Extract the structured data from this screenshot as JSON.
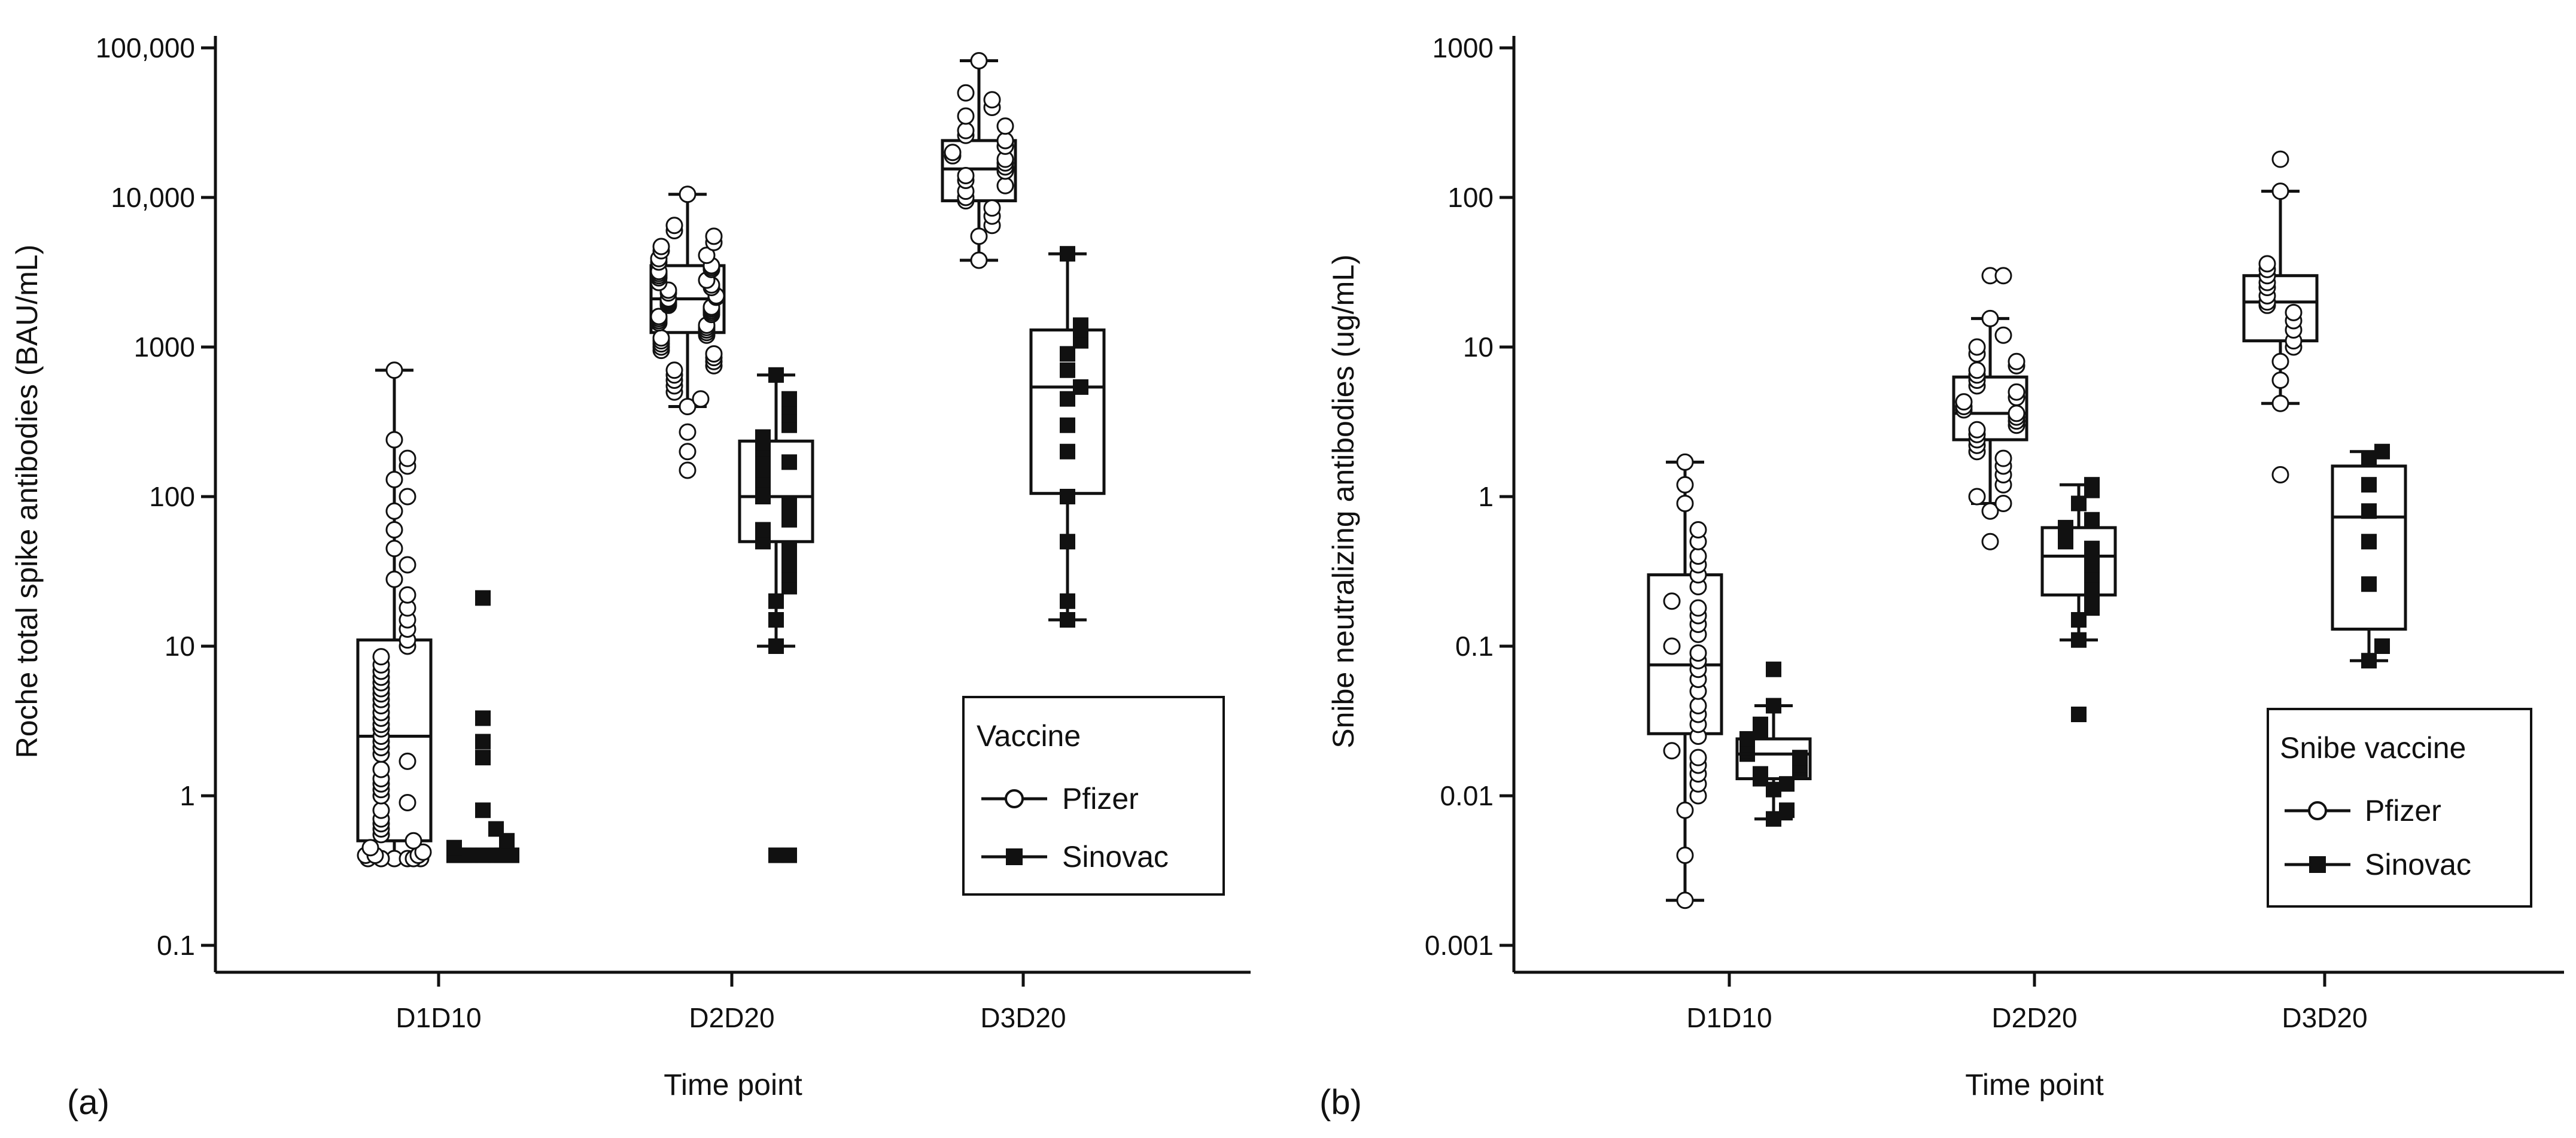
{
  "chart_data": [
    {
      "type": "boxplot",
      "panel_label": "(a)",
      "xlabel": "Time point",
      "ylabel": "Roche total spike antibodies (BAU/mL)",
      "yscale": "log",
      "ylim": [
        0.1,
        100000
      ],
      "yticks": [
        0.1,
        1,
        10,
        100,
        1000,
        10000,
        100000
      ],
      "ytick_labels": [
        "0.1",
        "1",
        "10",
        "100",
        "1000",
        "10,000",
        "100,000"
      ],
      "categories": [
        "D1D10",
        "D2D20",
        "D3D20"
      ],
      "legend": {
        "title": "Vaccine",
        "entries": [
          "Pfizer",
          "Sinovac"
        ],
        "position": "bottom-right"
      },
      "series": [
        {
          "name": "Pfizer",
          "marker": "open-circle",
          "boxes": [
            {
              "category": "D1D10",
              "whisker_low": 0.4,
              "q1": 0.5,
              "median": 2.5,
              "q3": 11,
              "whisker_high": 700,
              "points": [
                0.38,
                0.38,
                0.38,
                0.38,
                0.38,
                0.38,
                0.4,
                0.4,
                0.4,
                0.42,
                0.45,
                0.5,
                0.55,
                0.6,
                0.65,
                0.7,
                0.8,
                0.9,
                1.0,
                1.1,
                1.2,
                1.3,
                1.5,
                1.7,
                1.9,
                2.1,
                2.3,
                2.5,
                2.8,
                3.0,
                3.3,
                3.6,
                4.0,
                4.4,
                4.8,
                5.2,
                5.7,
                6.2,
                6.8,
                7.5,
                8.5,
                10,
                11,
                13,
                15,
                18,
                22,
                28,
                35,
                45,
                60,
                80,
                100,
                130,
                160,
                180,
                240,
                700
              ]
            },
            {
              "category": "D2D20",
              "whisker_low": 400,
              "q1": 1250,
              "median": 2100,
              "q3": 3500,
              "whisker_high": 10500,
              "points": [
                150,
                200,
                270,
                400,
                450,
                500,
                550,
                600,
                650,
                700,
                750,
                800,
                850,
                900,
                950,
                1000,
                1050,
                1100,
                1150,
                1200,
                1250,
                1300,
                1350,
                1400,
                1450,
                1500,
                1550,
                1600,
                1650,
                1700,
                1750,
                1800,
                1850,
                1900,
                1950,
                2000,
                2050,
                2100,
                2150,
                2200,
                2300,
                2400,
                2500,
                2600,
                2700,
                2800,
                2900,
                3000,
                3100,
                3200,
                3300,
                3400,
                3500,
                3700,
                3900,
                4100,
                4400,
                4700,
                5000,
                5500,
                6000,
                6500,
                10500
              ]
            },
            {
              "category": "D3D20",
              "whisker_low": 3800,
              "q1": 9500,
              "median": 15500,
              "q3": 24000,
              "whisker_high": 82000,
              "points": [
                3800,
                5500,
                6500,
                7500,
                8500,
                9500,
                10000,
                11000,
                12000,
                13000,
                14000,
                15000,
                16000,
                17000,
                18000,
                19000,
                20000,
                22000,
                24000,
                26000,
                28000,
                30000,
                35000,
                40000,
                45000,
                50000,
                82000
              ]
            }
          ]
        },
        {
          "name": "Sinovac",
          "marker": "filled-square",
          "boxes": [
            {
              "category": "D1D10",
              "whisker_low": null,
              "q1": null,
              "median": null,
              "q3": null,
              "whisker_high": null,
              "points": [
                0.4,
                0.4,
                0.4,
                0.4,
                0.4,
                0.4,
                0.4,
                0.4,
                0.4,
                0.4,
                0.4,
                0.4,
                0.45,
                0.5,
                0.6,
                0.8,
                1.8,
                2.3,
                3.3,
                21
              ]
            },
            {
              "category": "D2D20",
              "whisker_low": 10,
              "q1": 50,
              "median": 100,
              "q3": 235,
              "whisker_high": 650,
              "points": [
                0.4,
                0.4,
                10,
                15,
                20,
                25,
                30,
                35,
                40,
                45,
                50,
                55,
                60,
                70,
                80,
                90,
                100,
                110,
                120,
                130,
                150,
                170,
                190,
                210,
                230,
                250,
                300,
                350,
                400,
                450,
                650
              ]
            },
            {
              "category": "D3D20",
              "whisker_low": 15,
              "q1": 105,
              "median": 540,
              "q3": 1300,
              "whisker_high": 4200,
              "points": [
                15,
                20,
                50,
                100,
                200,
                300,
                450,
                540,
                700,
                900,
                1100,
                1300,
                1400,
                4200
              ]
            }
          ]
        }
      ]
    },
    {
      "type": "boxplot",
      "panel_label": "(b)",
      "xlabel": "Time point",
      "ylabel": "Snibe neutralizing antibodies (ug/mL)",
      "yscale": "log",
      "ylim": [
        0.001,
        1000
      ],
      "yticks": [
        0.001,
        0.01,
        0.1,
        1,
        10,
        100,
        1000
      ],
      "ytick_labels": [
        "0.001",
        "0.01",
        "0.1",
        "1",
        "10",
        "100",
        "1000"
      ],
      "categories": [
        "D1D10",
        "D2D20",
        "D3D20"
      ],
      "legend": {
        "title": "Snibe vaccine",
        "entries": [
          "Pfizer",
          "Sinovac"
        ],
        "position": "bottom-right"
      },
      "series": [
        {
          "name": "Pfizer",
          "marker": "open-circle",
          "boxes": [
            {
              "category": "D1D10",
              "whisker_low": 0.002,
              "q1": 0.026,
              "median": 0.075,
              "q3": 0.3,
              "whisker_high": 1.7,
              "points": [
                0.002,
                0.004,
                0.008,
                0.01,
                0.012,
                0.014,
                0.016,
                0.018,
                0.02,
                0.025,
                0.03,
                0.035,
                0.04,
                0.05,
                0.06,
                0.07,
                0.08,
                0.09,
                0.1,
                0.12,
                0.14,
                0.16,
                0.18,
                0.2,
                0.25,
                0.3,
                0.35,
                0.4,
                0.5,
                0.6,
                0.9,
                1.2,
                1.7
              ]
            },
            {
              "category": "D2D20",
              "whisker_low": 0.9,
              "q1": 2.4,
              "median": 3.6,
              "q3": 6.3,
              "whisker_high": 15.5,
              "points": [
                0.5,
                0.8,
                0.9,
                1.0,
                1.2,
                1.4,
                1.6,
                1.8,
                2.0,
                2.2,
                2.4,
                2.6,
                2.8,
                3.0,
                3.2,
                3.4,
                3.6,
                3.8,
                4.0,
                4.3,
                4.6,
                5.0,
                5.5,
                6.0,
                6.5,
                7.0,
                7.5,
                8.0,
                9.0,
                10,
                12,
                15.5,
                30,
                30
              ]
            },
            {
              "category": "D3D20",
              "whisker_low": 4.2,
              "q1": 11,
              "median": 20,
              "q3": 30,
              "whisker_high": 110,
              "points": [
                1.4,
                4.2,
                6,
                8,
                10,
                11,
                13,
                15,
                17,
                19,
                20,
                22,
                25,
                27,
                30,
                33,
                36,
                110,
                180
              ]
            }
          ]
        },
        {
          "name": "Sinovac",
          "marker": "filled-square",
          "boxes": [
            {
              "category": "D1D10",
              "whisker_low": 0.007,
              "q1": 0.013,
              "median": 0.019,
              "q3": 0.024,
              "whisker_high": 0.04,
              "points": [
                0.007,
                0.008,
                0.011,
                0.012,
                0.013,
                0.014,
                0.015,
                0.016,
                0.017,
                0.018,
                0.019,
                0.02,
                0.021,
                0.022,
                0.024,
                0.027,
                0.03,
                0.04,
                0.07
              ]
            },
            {
              "category": "D2D20",
              "whisker_low": 0.11,
              "q1": 0.22,
              "median": 0.4,
              "q3": 0.62,
              "whisker_high": 1.2,
              "points": [
                0.035,
                0.11,
                0.15,
                0.18,
                0.22,
                0.26,
                0.3,
                0.35,
                0.4,
                0.45,
                0.5,
                0.55,
                0.62,
                0.7,
                0.9,
                1.1,
                1.2
              ]
            },
            {
              "category": "D3D20",
              "whisker_low": 0.08,
              "q1": 0.13,
              "median": 0.73,
              "q3": 1.6,
              "whisker_high": 2.0,
              "points": [
                0.08,
                0.1,
                0.26,
                0.5,
                0.8,
                1.2,
                1.8,
                2.0
              ]
            }
          ]
        }
      ]
    }
  ]
}
